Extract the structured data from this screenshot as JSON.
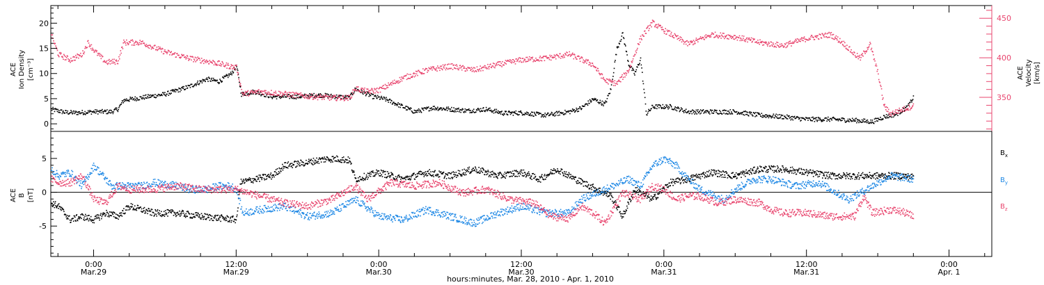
{
  "chart_data": [
    {
      "type": "scatter",
      "panel": "top",
      "ylabel_left": [
        "ACE",
        "Ion Density",
        "[cm⁻³]"
      ],
      "ylabel_right": [
        "ACE",
        "Velocity",
        "[km/s]"
      ],
      "left_axis": {
        "ylim": [
          -1.5,
          23.5
        ],
        "ticks": [
          0,
          5,
          10,
          15,
          20
        ]
      },
      "right_axis": {
        "ylim": [
          307,
          466
        ],
        "ticks": [
          350,
          400,
          450
        ]
      },
      "series": [
        {
          "axis": "left",
          "color": "#000000",
          "points": [
            [
              -3.6,
              3.0
            ],
            [
              -2.5,
              2.4
            ],
            [
              -1.5,
              2.3
            ],
            [
              0,
              2.5
            ],
            [
              1.5,
              2.5
            ],
            [
              2.0,
              3.0
            ],
            [
              2.5,
              4.8
            ],
            [
              4,
              5.3
            ],
            [
              6,
              6.0
            ],
            [
              8,
              7.5
            ],
            [
              9.5,
              9.0
            ],
            [
              10.5,
              8.5
            ],
            [
              11.5,
              10.0
            ],
            [
              12,
              11.5
            ],
            [
              12.4,
              6.0
            ],
            [
              13.5,
              6.5
            ],
            [
              15,
              5.5
            ],
            [
              17,
              5.5
            ],
            [
              19,
              5.8
            ],
            [
              21.5,
              5.3
            ],
            [
              22,
              7.0
            ],
            [
              23.5,
              5.5
            ],
            [
              24.5,
              5.0
            ],
            [
              25.5,
              4.0
            ],
            [
              27,
              2.5
            ],
            [
              28.5,
              3.3
            ],
            [
              30,
              3.0
            ],
            [
              31.5,
              2.7
            ],
            [
              33,
              3.0
            ],
            [
              34.5,
              2.2
            ],
            [
              36,
              2.3
            ],
            [
              38,
              1.8
            ],
            [
              40,
              2.5
            ],
            [
              41,
              3.2
            ],
            [
              42,
              5.0
            ],
            [
              43,
              4.0
            ],
            [
              43.5,
              7.0
            ],
            [
              44,
              15.0
            ],
            [
              44.5,
              18.0
            ],
            [
              45,
              12.0
            ],
            [
              45.5,
              10.0
            ],
            [
              46,
              13.0
            ],
            [
              46.5,
              2.0
            ],
            [
              47,
              3.5
            ],
            [
              48.5,
              3.5
            ],
            [
              50,
              2.5
            ],
            [
              52,
              2.5
            ],
            [
              54,
              2.5
            ],
            [
              56,
              1.8
            ],
            [
              58,
              1.5
            ],
            [
              60,
              1.0
            ],
            [
              62,
              1.0
            ],
            [
              64,
              0.8
            ],
            [
              65.5,
              0.5
            ],
            [
              66.5,
              1.5
            ],
            [
              67.5,
              2.0
            ],
            [
              68.5,
              3.5
            ],
            [
              69,
              5.5
            ]
          ]
        },
        {
          "axis": "right",
          "color": "#e8456e",
          "points": [
            [
              -3.6,
              430
            ],
            [
              -3,
              405
            ],
            [
              -2,
              398
            ],
            [
              -1,
              405
            ],
            [
              -0.5,
              420
            ],
            [
              0,
              410
            ],
            [
              1,
              395
            ],
            [
              2,
              396
            ],
            [
              2.5,
              420
            ],
            [
              4,
              420
            ],
            [
              6,
              408
            ],
            [
              8,
              400
            ],
            [
              10,
              395
            ],
            [
              12,
              388
            ],
            [
              12.5,
              355
            ],
            [
              14,
              358
            ],
            [
              16,
              355
            ],
            [
              18,
              352
            ],
            [
              20,
              350
            ],
            [
              21.5,
              350
            ],
            [
              22,
              362
            ],
            [
              23,
              358
            ],
            [
              24,
              360
            ],
            [
              26,
              375
            ],
            [
              28,
              385
            ],
            [
              30,
              390
            ],
            [
              32,
              385
            ],
            [
              34,
              392
            ],
            [
              36,
              398
            ],
            [
              38,
              400
            ],
            [
              40,
              405
            ],
            [
              42,
              392
            ],
            [
              43,
              372
            ],
            [
              44,
              368
            ],
            [
              45,
              385
            ],
            [
              46,
              425
            ],
            [
              47,
              445
            ],
            [
              48,
              435
            ],
            [
              50,
              418
            ],
            [
              52,
              430
            ],
            [
              54,
              427
            ],
            [
              56,
              420
            ],
            [
              58,
              416
            ],
            [
              60,
              425
            ],
            [
              62,
              430
            ],
            [
              63,
              420
            ],
            [
              64,
              405
            ],
            [
              64.5,
              400
            ],
            [
              65.3,
              418
            ],
            [
              66,
              380
            ],
            [
              66.5,
              340
            ],
            [
              67,
              330
            ],
            [
              68,
              335
            ],
            [
              69,
              340
            ]
          ]
        }
      ]
    },
    {
      "type": "scatter",
      "panel": "bottom",
      "ylabel_left": [
        "ACE",
        "B",
        "[nT]"
      ],
      "ylim": [
        -9.5,
        9.0
      ],
      "yticks": [
        -5,
        0,
        5
      ],
      "xlabel": "hours:minutes, Mar. 28, 2010 - Apr.  1, 2010",
      "xlim": [
        -3.6,
        75.6
      ],
      "xticks": [
        0,
        12,
        24,
        36,
        48,
        60,
        72
      ],
      "xtick_labels": [
        [
          "0:00",
          "Mar.29"
        ],
        [
          "12:00",
          "Mar.29"
        ],
        [
          "0:00",
          "Mar.30"
        ],
        [
          "12:00",
          "Mar.30"
        ],
        [
          "0:00",
          "Mar.31"
        ],
        [
          "12:00",
          "Mar.31"
        ],
        [
          "0:00",
          "Apr. 1"
        ]
      ],
      "series": [
        {
          "name": "Bx",
          "label_main": "B",
          "label_sub": "x",
          "color": "#000000",
          "points": [
            [
              -3.6,
              -1.5
            ],
            [
              -3,
              -2
            ],
            [
              -2,
              -4.0
            ],
            [
              -1,
              -3.5
            ],
            [
              0,
              -4.0
            ],
            [
              1,
              -3.0
            ],
            [
              2,
              -3.5
            ],
            [
              3,
              -2.0
            ],
            [
              5,
              -3.0
            ],
            [
              7,
              -3.0
            ],
            [
              9,
              -3.5
            ],
            [
              11,
              -3.8
            ],
            [
              12,
              -4.0
            ],
            [
              12.3,
              1.5
            ],
            [
              13.5,
              2.0
            ],
            [
              15,
              2.5
            ],
            [
              16,
              4.0
            ],
            [
              18,
              4.5
            ],
            [
              19.5,
              5.0
            ],
            [
              20.5,
              5.0
            ],
            [
              21.5,
              4.8
            ],
            [
              22,
              2.0
            ],
            [
              24,
              3.0
            ],
            [
              26,
              2.0
            ],
            [
              28,
              3.0
            ],
            [
              30,
              2.5
            ],
            [
              32,
              3.5
            ],
            [
              34,
              2.5
            ],
            [
              36,
              3.0
            ],
            [
              37.5,
              2.0
            ],
            [
              39,
              3.5
            ],
            [
              40.5,
              2.0
            ],
            [
              42,
              0.8
            ],
            [
              43.5,
              -0.5
            ],
            [
              44.5,
              -3.5
            ],
            [
              45.5,
              0.5
            ],
            [
              46,
              0.0
            ],
            [
              47,
              -1.0
            ],
            [
              48.5,
              1.5
            ],
            [
              50,
              2.0
            ],
            [
              52,
              3.0
            ],
            [
              54,
              2.5
            ],
            [
              56,
              3.5
            ],
            [
              58,
              3.5
            ],
            [
              60,
              3.0
            ],
            [
              62,
              2.5
            ],
            [
              64,
              2.5
            ],
            [
              66,
              2.5
            ],
            [
              68,
              2.5
            ],
            [
              69,
              2.3
            ]
          ]
        },
        {
          "name": "By",
          "label_main": "B",
          "label_sub": "y",
          "color": "#1e88e5",
          "points": [
            [
              -3.6,
              3.5
            ],
            [
              -3,
              2.5
            ],
            [
              -2,
              3.0
            ],
            [
              -1,
              1.0
            ],
            [
              0,
              4.0
            ],
            [
              0.5,
              3.0
            ],
            [
              1.5,
              1.0
            ],
            [
              2.5,
              1.0
            ],
            [
              4,
              1.0
            ],
            [
              5,
              1.5
            ],
            [
              7,
              1.0
            ],
            [
              8,
              0.5
            ],
            [
              9.5,
              0.5
            ],
            [
              10.5,
              1.0
            ],
            [
              11.5,
              1.0
            ],
            [
              12,
              0.5
            ],
            [
              12.5,
              -3.0
            ],
            [
              14,
              -2.5
            ],
            [
              16,
              -2.0
            ],
            [
              18,
              -3.5
            ],
            [
              20,
              -3.0
            ],
            [
              22,
              -1.0
            ],
            [
              24,
              -3.5
            ],
            [
              26,
              -4.0
            ],
            [
              28,
              -2.5
            ],
            [
              30,
              -3.5
            ],
            [
              32,
              -4.5
            ],
            [
              34,
              -3.0
            ],
            [
              36,
              -2.0
            ],
            [
              38,
              -3.0
            ],
            [
              40,
              -3.0
            ],
            [
              41,
              -1.0
            ],
            [
              43,
              0.5
            ],
            [
              45,
              2.0
            ],
            [
              46,
              1.0
            ],
            [
              47,
              4.0
            ],
            [
              48,
              5.0
            ],
            [
              49,
              4.0
            ],
            [
              50,
              2.0
            ],
            [
              51,
              0.5
            ],
            [
              53,
              -1.0
            ],
            [
              54,
              0.5
            ],
            [
              55.5,
              2.0
            ],
            [
              57,
              2.0
            ],
            [
              59,
              1.0
            ],
            [
              61,
              1.5
            ],
            [
              62,
              0.5
            ],
            [
              63.5,
              -1.0
            ],
            [
              65,
              0.5
            ],
            [
              67,
              2.5
            ],
            [
              69,
              2.0
            ]
          ]
        },
        {
          "name": "Bz",
          "label_main": "B",
          "label_sub": "z",
          "color": "#e8456e",
          "points": [
            [
              -3.6,
              2.0
            ],
            [
              -3,
              1.5
            ],
            [
              -2,
              1.5
            ],
            [
              -1,
              2.5
            ],
            [
              0,
              -1.0
            ],
            [
              1,
              -1.5
            ],
            [
              2,
              1.0
            ],
            [
              3,
              0.5
            ],
            [
              5,
              0.5
            ],
            [
              7,
              1.0
            ],
            [
              9,
              0.5
            ],
            [
              11,
              0.5
            ],
            [
              12,
              0.5
            ],
            [
              13,
              0.0
            ],
            [
              14,
              -0.5
            ],
            [
              16,
              -1.5
            ],
            [
              18,
              -2.0
            ],
            [
              20,
              -1.0
            ],
            [
              22,
              1.0
            ],
            [
              23,
              -1.0
            ],
            [
              25,
              1.5
            ],
            [
              27,
              1.0
            ],
            [
              29,
              1.5
            ],
            [
              31,
              0.0
            ],
            [
              33,
              0.5
            ],
            [
              35,
              -1.0
            ],
            [
              37,
              -1.5
            ],
            [
              38.5,
              -3.5
            ],
            [
              40,
              -3.8
            ],
            [
              41,
              -2.0
            ],
            [
              42,
              -3.0
            ],
            [
              43,
              -4.5
            ],
            [
              44.5,
              0.0
            ],
            [
              46,
              -1.0
            ],
            [
              47,
              1.0
            ],
            [
              48,
              0.5
            ],
            [
              49,
              -1.0
            ],
            [
              50,
              -0.5
            ],
            [
              51,
              -0.5
            ],
            [
              52.5,
              -1.5
            ],
            [
              54,
              -1.0
            ],
            [
              56,
              -1.5
            ],
            [
              57,
              -2.5
            ],
            [
              58,
              -3.0
            ],
            [
              60,
              -3.0
            ],
            [
              62,
              -3.5
            ],
            [
              64,
              -3.5
            ],
            [
              64.8,
              -0.5
            ],
            [
              65.5,
              -3.0
            ],
            [
              67,
              -2.5
            ],
            [
              68,
              -2.8
            ],
            [
              69,
              -3.5
            ]
          ]
        }
      ],
      "zero_line": true
    }
  ]
}
